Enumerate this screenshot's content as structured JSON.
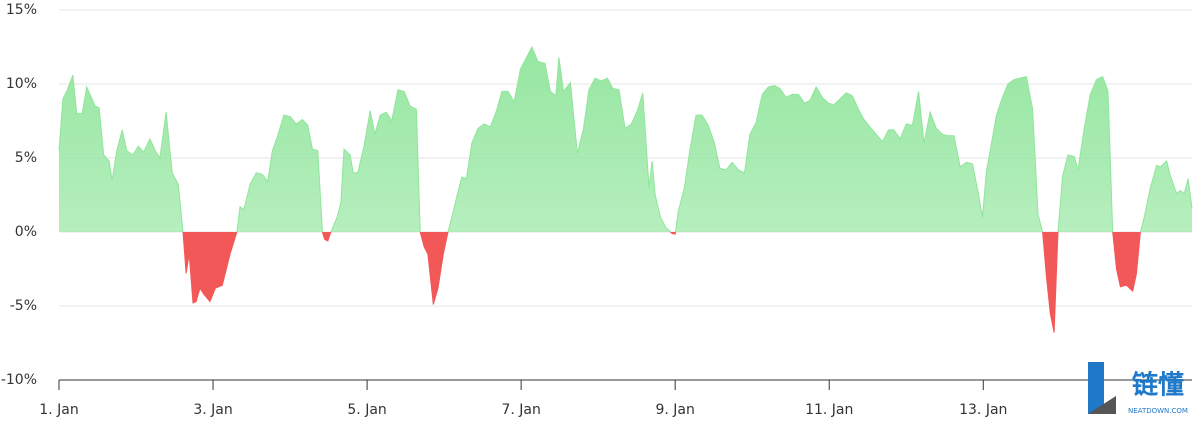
{
  "chart_data": {
    "type": "area",
    "x": [
      1.0,
      1.05,
      1.1,
      1.18,
      1.23,
      1.3,
      1.36,
      1.47,
      1.52,
      1.58,
      1.65,
      1.69,
      1.75,
      1.82,
      1.88,
      1.96,
      2.03,
      2.1,
      2.18,
      2.25,
      2.31,
      2.39,
      2.47,
      2.55,
      2.61,
      2.65,
      2.69,
      2.74,
      2.78,
      2.83,
      2.88,
      2.96,
      3.03,
      3.12,
      3.22,
      3.31,
      3.35,
      3.4,
      3.48,
      3.56,
      3.64,
      3.71,
      3.77,
      3.84,
      3.92,
      4.0,
      4.08,
      4.16,
      4.23,
      4.29,
      4.36,
      4.42,
      4.45,
      4.49,
      4.53,
      4.61,
      4.66,
      4.7,
      4.78,
      4.82,
      4.88,
      4.96,
      5.04,
      5.1,
      5.17,
      5.25,
      5.32,
      5.4,
      5.48,
      5.56,
      5.64,
      5.69,
      5.74,
      5.79,
      5.86,
      5.92,
      5.99,
      6.05,
      6.1,
      6.17,
      6.23,
      6.29,
      6.36,
      6.44,
      6.52,
      6.6,
      6.68,
      6.75,
      6.83,
      6.91,
      6.99,
      7.05,
      7.14,
      7.22,
      7.31,
      7.38,
      7.45,
      7.49,
      7.55,
      7.64,
      7.73,
      7.81,
      7.88,
      7.96,
      8.04,
      8.12,
      8.19,
      8.27,
      8.35,
      8.43,
      8.51,
      8.58,
      8.66,
      8.7,
      8.74,
      8.81,
      8.88,
      8.92,
      8.96,
      9.0,
      9.04,
      9.12,
      9.19,
      9.27,
      9.35,
      9.43,
      9.51,
      9.58,
      9.66,
      9.74,
      9.82,
      9.9,
      9.97,
      10.05,
      10.13,
      10.21,
      10.29,
      10.36,
      10.44,
      10.52,
      10.6,
      10.68,
      10.75,
      10.83,
      10.91,
      10.99,
      11.06,
      11.14,
      11.22,
      11.3,
      11.38,
      11.45,
      11.53,
      11.61,
      11.69,
      11.77,
      11.84,
      11.92,
      12.0,
      12.08,
      12.16,
      12.23,
      12.31,
      12.39,
      12.47,
      12.55,
      12.62,
      12.7,
      12.78,
      12.86,
      12.94,
      12.99,
      13.04,
      13.09,
      13.17,
      13.25,
      13.32,
      13.4,
      13.48,
      13.56,
      13.64,
      13.71,
      13.77,
      13.82,
      13.87,
      13.92,
      13.97,
      14.03,
      14.1,
      14.18,
      14.23,
      14.31,
      14.39,
      14.47,
      14.55,
      14.62,
      14.68,
      14.73,
      14.78,
      14.86,
      14.94,
      14.99,
      15.04,
      15.09,
      15.17,
      15.25,
      15.3,
      15.38,
      15.43,
      15.51,
      15.56,
      15.61,
      15.66,
      15.71
    ],
    "values": [
      5.5,
      9,
      9.5,
      10.6,
      8,
      8,
      9.8,
      8.5,
      8.4,
      5.2,
      4.8,
      3.5,
      5.5,
      6.9,
      5.5,
      5.2,
      5.8,
      5.4,
      6.3,
      5.5,
      5,
      8.1,
      4,
      3.2,
      0,
      -2.8,
      -1.5,
      -4.8,
      -4.7,
      -3.8,
      -4.2,
      -4.7,
      -3.8,
      -3.6,
      -1.5,
      0,
      1.7,
      1.5,
      3.2,
      4,
      3.9,
      3.4,
      5.5,
      6.5,
      7.9,
      7.8,
      7.3,
      7.6,
      7.2,
      5.6,
      5.5,
      0,
      -0.5,
      -0.6,
      0,
      1,
      2,
      5.6,
      5.2,
      4,
      4,
      5.8,
      8.2,
      6.6,
      7.9,
      8.1,
      7.5,
      9.6,
      9.5,
      8.5,
      8.3,
      0,
      -1,
      -1.5,
      -4.9,
      -3.8,
      -1.5,
      0,
      1,
      2.5,
      3.7,
      3.6,
      6,
      7,
      7.3,
      7.1,
      8.2,
      9.5,
      9.5,
      8.8,
      11,
      11.6,
      12.5,
      11.5,
      11.4,
      9.5,
      9.2,
      11.8,
      9.5,
      10.1,
      5.3,
      7,
      9.6,
      10.4,
      10.2,
      10.4,
      9.7,
      9.6,
      7,
      7.3,
      8.2,
      9.4,
      3,
      4.8,
      2.5,
      1,
      0.3,
      0.1,
      -0.1,
      -0.15,
      1.4,
      3,
      5.5,
      7.9,
      7.9,
      7.2,
      6,
      4.3,
      4.2,
      4.7,
      4.2,
      4,
      6.6,
      7.4,
      9.3,
      9.8,
      9.9,
      9.7,
      9.1,
      9.3,
      9.3,
      8.7,
      8.9,
      9.8,
      9.1,
      8.7,
      8.6,
      9,
      9.4,
      9.2,
      8.3,
      7.6,
      7.1,
      6.6,
      6.1,
      6.9,
      6.9,
      6.3,
      7.3,
      7.2,
      9.5,
      6,
      8.1,
      7,
      6.6,
      6.5,
      6.5,
      4.4,
      4.7,
      4.6,
      2.5,
      1,
      4.1,
      5.5,
      7.9,
      9.1,
      10,
      10.3,
      10.4,
      10.5,
      8.3,
      1.2,
      0,
      -3,
      -5.5,
      -6.8,
      0,
      3.8,
      5.2,
      5.1,
      4.2,
      7,
      9.3,
      10.3,
      10.5,
      9.5,
      0,
      -2.5,
      -3.7,
      -3.6,
      -4,
      -2.8,
      0,
      1,
      3,
      4.5,
      4.4,
      4.8,
      3.8,
      2.6,
      2.8,
      2.6,
      3.6,
      1.6
    ],
    "color": "#8fe59b",
    "negative_color": "#f25858",
    "xlim": [
      1,
      15.71
    ],
    "xticks": [
      {
        "value": 1,
        "label": "1. Jan"
      },
      {
        "value": 3,
        "label": "3. Jan"
      },
      {
        "value": 5,
        "label": "5. Jan"
      },
      {
        "value": 7,
        "label": "7. Jan"
      },
      {
        "value": 9,
        "label": "9. Jan"
      },
      {
        "value": 11,
        "label": "11. Jan"
      },
      {
        "value": 13,
        "label": "13. Jan"
      }
    ],
    "ylim": [
      -10,
      15
    ],
    "yticks": [
      {
        "value": -10,
        "label": "-10%"
      },
      {
        "value": -5,
        "label": "-5%"
      },
      {
        "value": 0,
        "label": "0%"
      },
      {
        "value": 5,
        "label": "5%"
      },
      {
        "value": 10,
        "label": "10%"
      },
      {
        "value": 15,
        "label": "15%"
      }
    ],
    "grid": true,
    "watermark": {
      "text": "链懂",
      "subtext": "NEATDOWN.COM"
    }
  }
}
